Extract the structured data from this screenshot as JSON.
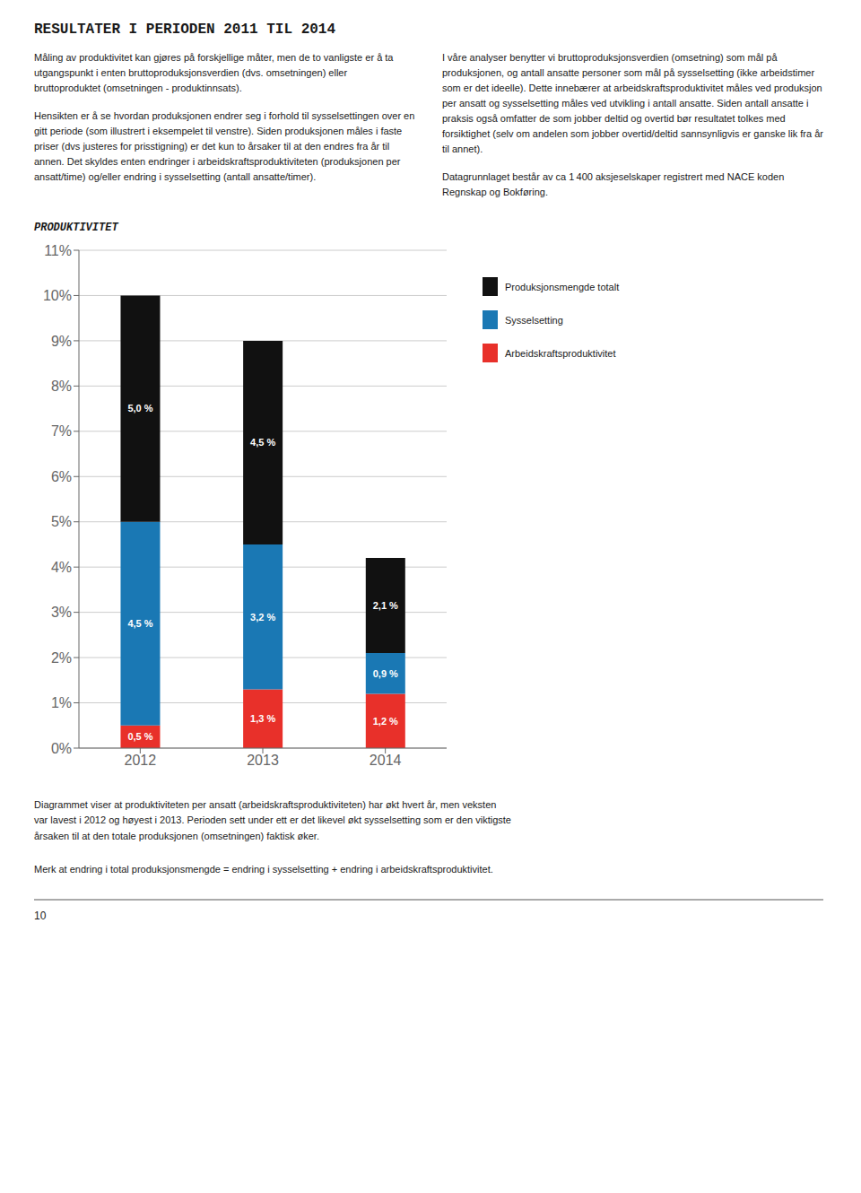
{
  "chart_data": {
    "type": "bar",
    "title": "RESULTATER I PERIODEN 2011 TIL 2014",
    "subtitle": "PRODUKTIVITET",
    "annotations": [
      "Måling av produktivitet kan gjøres på forskjellige måter, men de to vanligste er å ta utgangspunkt i enten bruttoproduksjonsverdien (dvs. omsetningen) eller bruttoproduktet (omsetningen - produktinnsats).",
      "Hensikten er å se hvordan produksjonen endrer seg i forhold til sysselsettingen over en gitt periode (som illustrert i eksempelet til venstre). Siden produksjonen måles i faste priser (dvs justeres for prisstigning) er det kun to årsaker til at den endres fra år til annen. Det skyldes enten endringer i arbeidskraftsproduktiviteten (produksjonen per ansatt/time) og/eller endring i sysselsetting (antall ansatte/timer).",
      "I våre analyser benytter vi bruttoproduksjonsverdien (omsetning) som mål på produksjonen, og antall ansatte personer som mål på sysselsetting (ikke arbeidstimer som er det ideelle).  Dette innebærer at arbeidskraftsproduktivitet måles ved produksjon per ansatt og sysselsetting måles ved utvikling i antall ansatte. Siden antall ansatte i praksis også omfatter de som jobber deltid og overtid bør resultatet tolkes med forsiktighet (selv om andelen som jobber overtid/deltid sannsynligvis er ganske lik fra år til annet).",
      "Datagrunnlaget består av ca 1 400 aksjeselskaper registrert med NACE koden Regnskap og Bokføring.",
      "Diagrammet viser at produktiviteten per ansatt (arbeidskraftsproduktiviteten) har økt hvert år, men veksten\nvar lavest i 2012 og høyest i 2013. Perioden sett under ett er det likevel økt sysselsetting som er den viktigste\nårsaken til at den totale produksjonen (omsetningen) faktisk øker.",
      "Merk at endring i total produksjonsmengde = endring i sysselsetting + endring i arbeidskraftsproduktivitet.",
      "10"
    ],
    "categories": [
      "2012",
      "2013",
      "2014"
    ],
    "series": [
      {
        "name": "Arbeidskraftsproduktivitet",
        "color": "#e8302a",
        "values": [
          0.5,
          1.3,
          1.2
        ],
        "value_labels": [
          "0,5 %",
          "1,3 %",
          "1,2 %"
        ]
      },
      {
        "name": "Sysselsetting",
        "color": "#1a78b4",
        "values": [
          4.5,
          3.2,
          0.9
        ],
        "value_labels": [
          "4,5 %",
          "3,2 %",
          "0,9 %"
        ]
      },
      {
        "name": "Produksjonsmengde totalt",
        "color": "#111111",
        "values": [
          5.0,
          4.5,
          2.1
        ],
        "value_labels": [
          "5,0 %",
          "4,5 %",
          "2,1 %"
        ]
      }
    ],
    "ylim": [
      0,
      11
    ],
    "yticks": [
      {
        "value": 0,
        "label": "0%"
      },
      {
        "value": 1,
        "label": "1%"
      },
      {
        "value": 2,
        "label": "2%"
      },
      {
        "value": 3,
        "label": "3%"
      },
      {
        "value": 4,
        "label": "4%"
      },
      {
        "value": 5,
        "label": "5%"
      },
      {
        "value": 6,
        "label": "6%"
      },
      {
        "value": 7,
        "label": "7%"
      },
      {
        "value": 8,
        "label": "8%"
      },
      {
        "value": 9,
        "label": "9%"
      },
      {
        "value": 10,
        "label": "10%"
      },
      {
        "value": 11,
        "label": "11%"
      }
    ],
    "stacked": true,
    "grid": true,
    "legend": "right",
    "data_labels": true
  }
}
